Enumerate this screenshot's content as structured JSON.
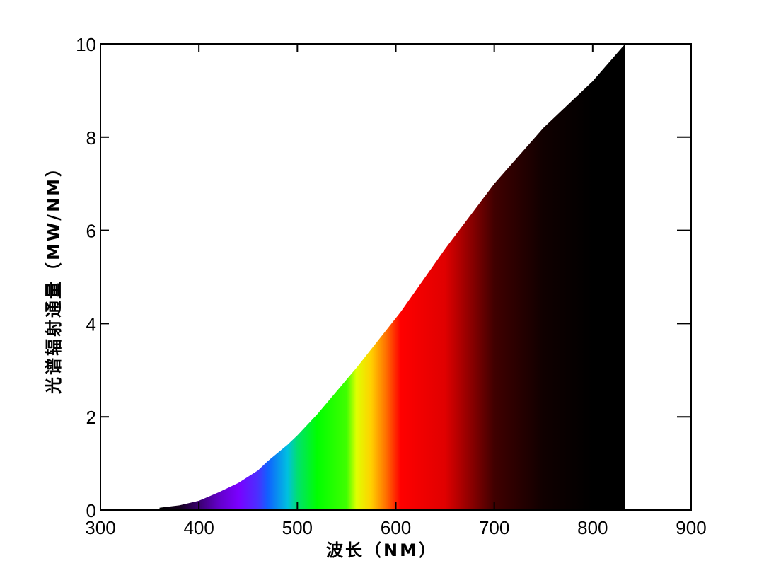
{
  "chart_data": {
    "type": "area",
    "x_label": "波长（NM）",
    "y_label": "光谱辐射通量（MW/NM）",
    "series": [
      {
        "x": [
          360,
          380,
          400,
          420,
          440,
          460,
          470,
          490,
          500,
          520,
          550,
          560,
          575,
          590,
          605,
          650,
          700,
          750,
          800,
          833
        ],
        "values": [
          0.05,
          0.1,
          0.2,
          0.38,
          0.58,
          0.85,
          1.05,
          1.4,
          1.6,
          2.05,
          2.8,
          3.05,
          3.45,
          3.85,
          4.25,
          5.6,
          7.0,
          8.2,
          9.2,
          10.0
        ],
        "colors": [
          "#000000",
          "#14001e",
          "#3a0070",
          "#6200c8",
          "#7a00ff",
          "#4a30ff",
          "#1060ff",
          "#00c0e0",
          "#00e070",
          "#00ff00",
          "#40ff00",
          "#e0ff00",
          "#ffd000",
          "#ff7000",
          "#ff0000",
          "#e00000",
          "#400000",
          "#100000",
          "#000000",
          "#000000"
        ]
      }
    ],
    "xlim": [
      300,
      900
    ],
    "xticks": [
      300,
      400,
      500,
      600,
      700,
      800,
      900
    ],
    "ylim": [
      0,
      10
    ],
    "yticks": [
      0,
      2,
      4,
      6,
      8,
      10
    ]
  }
}
